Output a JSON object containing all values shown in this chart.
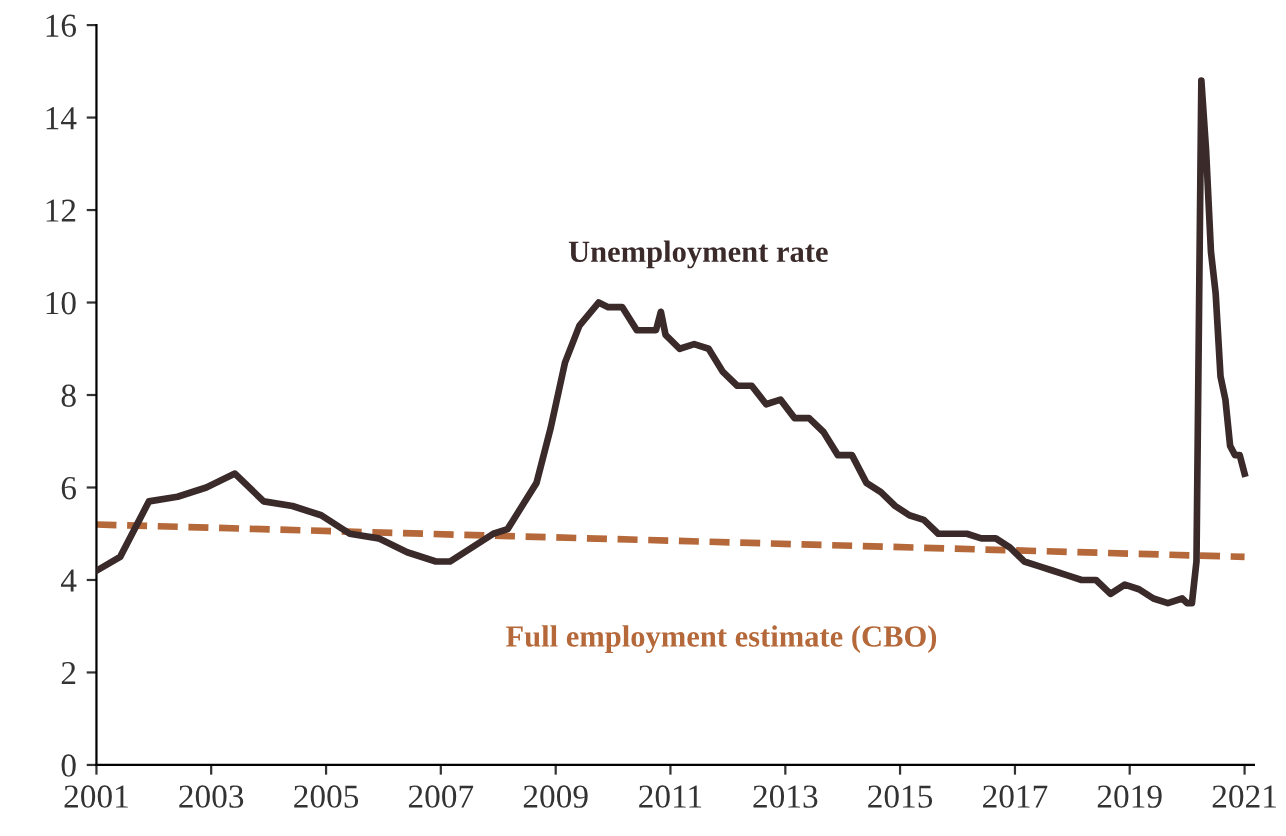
{
  "chart_data": {
    "type": "line",
    "xlim": [
      "2001-01",
      "2021-03"
    ],
    "xticks": [
      {
        "value": "2001-01",
        "label": "2001"
      },
      {
        "value": "2003-01",
        "label": "2003"
      },
      {
        "value": "2005-01",
        "label": "2005"
      },
      {
        "value": "2007-01",
        "label": "2007"
      },
      {
        "value": "2009-01",
        "label": "2009"
      },
      {
        "value": "2011-01",
        "label": "2011"
      },
      {
        "value": "2013-01",
        "label": "2013"
      },
      {
        "value": "2015-01",
        "label": "2015"
      },
      {
        "value": "2017-01",
        "label": "2017"
      },
      {
        "value": "2019-01",
        "label": "2019"
      },
      {
        "value": "2021-01",
        "label": "2021"
      }
    ],
    "ylim": [
      0,
      16
    ],
    "yticks": [
      0,
      2,
      4,
      6,
      8,
      10,
      12,
      14,
      16
    ],
    "grid": false,
    "legend": false,
    "series": [
      {
        "name": "Unemployment rate",
        "color": "#3b2a2a",
        "line_style": "solid",
        "x": [
          "2001-01",
          "2001-06",
          "2001-12",
          "2002-06",
          "2002-12",
          "2003-06",
          "2003-12",
          "2004-06",
          "2004-12",
          "2005-06",
          "2005-12",
          "2006-06",
          "2006-12",
          "2007-03",
          "2007-06",
          "2007-12",
          "2008-03",
          "2008-06",
          "2008-09",
          "2008-12",
          "2009-03",
          "2009-06",
          "2009-10",
          "2009-12",
          "2010-03",
          "2010-06",
          "2010-10",
          "2010-11",
          "2010-12",
          "2011-03",
          "2011-06",
          "2011-09",
          "2011-12",
          "2012-03",
          "2012-06",
          "2012-09",
          "2012-12",
          "2013-03",
          "2013-06",
          "2013-09",
          "2013-12",
          "2014-03",
          "2014-06",
          "2014-09",
          "2014-12",
          "2015-03",
          "2015-06",
          "2015-09",
          "2015-12",
          "2016-03",
          "2016-06",
          "2016-09",
          "2016-12",
          "2017-03",
          "2017-06",
          "2017-09",
          "2017-12",
          "2018-03",
          "2018-06",
          "2018-09",
          "2018-12",
          "2019-03",
          "2019-06",
          "2019-09",
          "2019-12",
          "2020-01",
          "2020-02",
          "2020-03",
          "2020-04",
          "2020-05",
          "2020-06",
          "2020-07",
          "2020-08",
          "2020-09",
          "2020-10",
          "2020-11",
          "2020-12",
          "2021-01"
        ],
        "values": [
          4.2,
          4.5,
          5.7,
          5.8,
          6.0,
          6.3,
          5.7,
          5.6,
          5.4,
          5.0,
          4.9,
          4.6,
          4.4,
          4.4,
          4.6,
          5.0,
          5.1,
          5.6,
          6.1,
          7.3,
          8.7,
          9.5,
          10.0,
          9.9,
          9.9,
          9.4,
          9.4,
          9.8,
          9.3,
          9.0,
          9.1,
          9.0,
          8.5,
          8.2,
          8.2,
          7.8,
          7.9,
          7.5,
          7.5,
          7.2,
          6.7,
          6.7,
          6.1,
          5.9,
          5.6,
          5.4,
          5.3,
          5.0,
          5.0,
          5.0,
          4.9,
          4.9,
          4.7,
          4.4,
          4.3,
          4.2,
          4.1,
          4.0,
          4.0,
          3.7,
          3.9,
          3.8,
          3.6,
          3.5,
          3.6,
          3.5,
          3.5,
          4.4,
          14.8,
          13.3,
          11.1,
          10.2,
          8.4,
          7.9,
          6.9,
          6.7,
          6.7,
          6.3
        ]
      },
      {
        "name": "Full employment estimate (CBO)",
        "color": "#b5693a",
        "line_style": "dashed",
        "x": [
          "2001-01",
          "2021-01"
        ],
        "values": [
          5.2,
          4.5
        ]
      }
    ]
  }
}
